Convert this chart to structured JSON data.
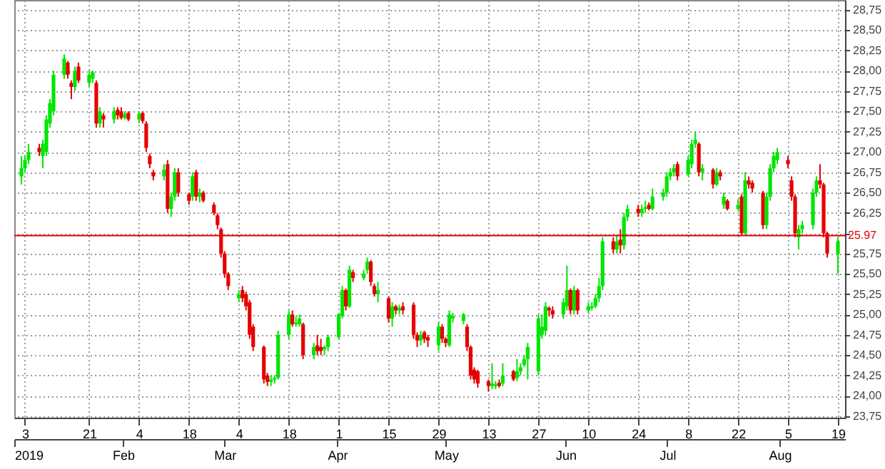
{
  "chart_data": {
    "type": "candlestick",
    "x": [
      "2019-01-02",
      "2019-01-03",
      "2019-01-04",
      "2019-01-07",
      "2019-01-08",
      "2019-01-09",
      "2019-01-10",
      "2019-01-11",
      "2019-01-14",
      "2019-01-15",
      "2019-01-16",
      "2019-01-17",
      "2019-01-18",
      "2019-01-21",
      "2019-01-22",
      "2019-01-23",
      "2019-01-24",
      "2019-01-25",
      "2019-01-28",
      "2019-01-29",
      "2019-01-30",
      "2019-01-31",
      "2019-02-01",
      "2019-02-04",
      "2019-02-05",
      "2019-02-06",
      "2019-02-07",
      "2019-02-08",
      "2019-02-11",
      "2019-02-12",
      "2019-02-13",
      "2019-02-14",
      "2019-02-15",
      "2019-02-18",
      "2019-02-19",
      "2019-02-20",
      "2019-02-21",
      "2019-02-22",
      "2019-02-25",
      "2019-02-26",
      "2019-02-27",
      "2019-02-28",
      "2019-03-01",
      "2019-03-04",
      "2019-03-05",
      "2019-03-06",
      "2019-03-07",
      "2019-03-08",
      "2019-03-11",
      "2019-03-12",
      "2019-03-13",
      "2019-03-14",
      "2019-03-15",
      "2019-03-18",
      "2019-03-19",
      "2019-03-20",
      "2019-03-21",
      "2019-03-22",
      "2019-03-25",
      "2019-03-26",
      "2019-03-27",
      "2019-03-28",
      "2019-03-29",
      "2019-04-01",
      "2019-04-02",
      "2019-04-03",
      "2019-04-04",
      "2019-04-05",
      "2019-04-08",
      "2019-04-09",
      "2019-04-10",
      "2019-04-11",
      "2019-04-12",
      "2019-04-15",
      "2019-04-16",
      "2019-04-17",
      "2019-04-18",
      "2019-04-19",
      "2019-04-22",
      "2019-04-23",
      "2019-04-24",
      "2019-04-25",
      "2019-04-26",
      "2019-04-29",
      "2019-04-30",
      "2019-05-01",
      "2019-05-02",
      "2019-05-03",
      "2019-05-06",
      "2019-05-07",
      "2019-05-08",
      "2019-05-09",
      "2019-05-10",
      "2019-05-13",
      "2019-05-14",
      "2019-05-15",
      "2019-05-16",
      "2019-05-17",
      "2019-05-20",
      "2019-05-21",
      "2019-05-22",
      "2019-05-23",
      "2019-05-24",
      "2019-05-27",
      "2019-05-28",
      "2019-05-29",
      "2019-05-30",
      "2019-05-31",
      "2019-06-03",
      "2019-06-04",
      "2019-06-05",
      "2019-06-06",
      "2019-06-07",
      "2019-06-10",
      "2019-06-11",
      "2019-06-12",
      "2019-06-13",
      "2019-06-14",
      "2019-06-17",
      "2019-06-18",
      "2019-06-19",
      "2019-06-20",
      "2019-06-21",
      "2019-06-24",
      "2019-06-25",
      "2019-06-26",
      "2019-06-27",
      "2019-06-28",
      "2019-07-01",
      "2019-07-02",
      "2019-07-03",
      "2019-07-04",
      "2019-07-05",
      "2019-07-08",
      "2019-07-09",
      "2019-07-10",
      "2019-07-11",
      "2019-07-12",
      "2019-07-15",
      "2019-07-16",
      "2019-07-17",
      "2019-07-18",
      "2019-07-19",
      "2019-07-22",
      "2019-07-23",
      "2019-07-24",
      "2019-07-25",
      "2019-07-26",
      "2019-07-29",
      "2019-07-30",
      "2019-07-31",
      "2019-08-01",
      "2019-08-02",
      "2019-08-05",
      "2019-08-06",
      "2019-08-07",
      "2019-08-08",
      "2019-08-09",
      "2019-08-12",
      "2019-08-13",
      "2019-08-14",
      "2019-08-15",
      "2019-08-16",
      "2019-08-19"
    ],
    "ohlc": [
      [
        26.7,
        26.95,
        26.6,
        26.8
      ],
      [
        26.8,
        26.95,
        26.75,
        26.9
      ],
      [
        26.9,
        27.1,
        26.85,
        27.0
      ],
      [
        27.05,
        27.1,
        26.95,
        27.0
      ],
      [
        26.95,
        27.15,
        26.8,
        27.1
      ],
      [
        27.0,
        27.45,
        26.95,
        27.4
      ],
      [
        27.35,
        27.65,
        27.3,
        27.6
      ],
      [
        27.5,
        28.0,
        27.45,
        27.95
      ],
      [
        27.95,
        28.2,
        27.9,
        28.15
      ],
      [
        28.1,
        28.12,
        27.9,
        27.95
      ],
      [
        27.85,
        27.88,
        27.65,
        27.8
      ],
      [
        27.8,
        28.05,
        27.75,
        28.0
      ],
      [
        28.05,
        28.1,
        27.85,
        27.88
      ],
      [
        27.85,
        28.0,
        27.8,
        27.95
      ],
      [
        27.9,
        28.0,
        27.85,
        27.98
      ],
      [
        27.85,
        27.88,
        27.3,
        27.35
      ],
      [
        27.35,
        27.55,
        27.3,
        27.5
      ],
      [
        27.45,
        27.48,
        27.3,
        27.4
      ],
      [
        27.4,
        27.55,
        27.35,
        27.5
      ],
      [
        27.52,
        27.55,
        27.4,
        27.45
      ],
      [
        27.5,
        27.55,
        27.4,
        27.42
      ],
      [
        27.42,
        27.5,
        27.4,
        27.47
      ],
      [
        27.48,
        27.5,
        27.38,
        27.4
      ],
      [
        27.4,
        27.5,
        27.35,
        27.47
      ],
      [
        27.48,
        27.5,
        27.35,
        27.38
      ],
      [
        27.35,
        27.38,
        27.0,
        27.05
      ],
      [
        26.95,
        26.98,
        26.8,
        26.85
      ],
      [
        26.75,
        26.78,
        26.65,
        26.7
      ],
      [
        26.7,
        26.85,
        26.65,
        26.78
      ],
      [
        26.85,
        26.9,
        26.25,
        26.3
      ],
      [
        26.3,
        26.5,
        26.2,
        26.45
      ],
      [
        26.45,
        26.8,
        26.4,
        26.75
      ],
      [
        26.75,
        26.8,
        26.45,
        26.5
      ],
      [
        26.48,
        26.5,
        26.35,
        26.4
      ],
      [
        26.45,
        26.75,
        26.4,
        26.7
      ],
      [
        26.75,
        26.78,
        26.4,
        26.45
      ],
      [
        26.45,
        26.55,
        26.38,
        26.5
      ],
      [
        26.5,
        26.52,
        26.38,
        26.4
      ],
      [
        26.35,
        26.38,
        26.22,
        26.25
      ],
      [
        26.22,
        26.25,
        26.05,
        26.1
      ],
      [
        26.05,
        26.07,
        25.7,
        25.75
      ],
      [
        25.75,
        25.78,
        25.45,
        25.5
      ],
      [
        25.5,
        25.52,
        25.3,
        25.35
      ],
      [
        25.2,
        25.3,
        25.15,
        25.25
      ],
      [
        25.3,
        25.35,
        25.15,
        25.2
      ],
      [
        25.25,
        25.28,
        25.05,
        25.1
      ],
      [
        25.15,
        25.18,
        24.7,
        24.75
      ],
      [
        24.85,
        24.88,
        24.55,
        24.6
      ],
      [
        24.6,
        24.62,
        24.15,
        24.2
      ],
      [
        24.25,
        24.28,
        24.12,
        24.17
      ],
      [
        24.17,
        24.25,
        24.12,
        24.2
      ],
      [
        24.2,
        24.25,
        24.15,
        24.22
      ],
      [
        24.22,
        24.8,
        24.2,
        24.75
      ],
      [
        24.75,
        25.05,
        24.7,
        25.0
      ],
      [
        25.0,
        25.05,
        24.85,
        24.88
      ],
      [
        24.88,
        24.98,
        24.85,
        24.9
      ],
      [
        24.88,
        25.0,
        24.85,
        24.95
      ],
      [
        24.88,
        24.9,
        24.45,
        24.5
      ],
      [
        24.5,
        24.65,
        24.45,
        24.6
      ],
      [
        24.62,
        24.75,
        24.5,
        24.55
      ],
      [
        24.6,
        24.7,
        24.5,
        24.55
      ],
      [
        24.57,
        24.62,
        24.5,
        24.6
      ],
      [
        24.6,
        24.75,
        24.55,
        24.72
      ],
      [
        24.72,
        25.02,
        24.7,
        25.0
      ],
      [
        24.98,
        25.35,
        24.95,
        25.3
      ],
      [
        25.3,
        25.32,
        25.05,
        25.1
      ],
      [
        25.1,
        25.6,
        25.08,
        25.55
      ],
      [
        25.52,
        25.55,
        25.4,
        25.45
      ],
      [
        25.45,
        25.55,
        25.42,
        25.5
      ],
      [
        25.55,
        25.7,
        25.5,
        25.65
      ],
      [
        25.65,
        25.67,
        25.35,
        25.4
      ],
      [
        25.35,
        25.38,
        25.22,
        25.25
      ],
      [
        25.25,
        25.4,
        25.15,
        25.3
      ],
      [
        25.2,
        25.22,
        24.9,
        24.95
      ],
      [
        24.95,
        25.15,
        24.85,
        25.1
      ],
      [
        25.1,
        25.12,
        25.0,
        25.05
      ],
      [
        25.05,
        25.12,
        25.0,
        25.08
      ],
      [
        25.1,
        25.15,
        25.0,
        25.05
      ],
      [
        25.12,
        25.15,
        24.7,
        24.75
      ],
      [
        24.75,
        24.78,
        24.6,
        24.68
      ],
      [
        24.68,
        24.8,
        24.62,
        24.75
      ],
      [
        24.78,
        24.8,
        24.65,
        24.7
      ],
      [
        24.72,
        24.75,
        24.6,
        24.68
      ],
      [
        24.62,
        24.9,
        24.55,
        24.85
      ],
      [
        24.85,
        24.88,
        24.65,
        24.7
      ],
      [
        24.7,
        24.72,
        24.6,
        24.65
      ],
      [
        24.62,
        25.05,
        24.6,
        25.0
      ],
      [
        24.95,
        25.02,
        24.9,
        24.98
      ],
      [
        24.92,
        25.02,
        24.88,
        25.0
      ],
      [
        24.85,
        24.88,
        24.55,
        24.6
      ],
      [
        24.6,
        24.62,
        24.2,
        24.25
      ],
      [
        24.32,
        24.35,
        24.15,
        24.2
      ],
      [
        24.3,
        24.32,
        24.1,
        24.15
      ],
      [
        24.18,
        24.2,
        24.05,
        24.12
      ],
      [
        24.12,
        24.4,
        24.08,
        24.15
      ],
      [
        24.12,
        24.18,
        24.08,
        24.14
      ],
      [
        24.16,
        24.2,
        24.1,
        24.12
      ],
      [
        24.15,
        24.4,
        24.12,
        24.25
      ],
      [
        24.3,
        24.32,
        24.18,
        24.2
      ],
      [
        24.22,
        24.45,
        24.18,
        24.3
      ],
      [
        24.3,
        24.4,
        24.25,
        24.35
      ],
      [
        24.38,
        24.5,
        24.35,
        24.45
      ],
      [
        24.45,
        24.65,
        24.2,
        24.6
      ],
      [
        24.3,
        25.0,
        24.25,
        24.95
      ],
      [
        24.75,
        25.0,
        24.7,
        24.85
      ],
      [
        24.8,
        25.15,
        24.75,
        25.1
      ],
      [
        25.08,
        25.1,
        24.98,
        25.05
      ],
      [
        25.05,
        25.1,
        24.95,
        25.0
      ],
      [
        25.0,
        25.2,
        24.95,
        25.15
      ],
      [
        25.1,
        25.6,
        25.05,
        25.3
      ],
      [
        25.3,
        25.32,
        25.0,
        25.05
      ],
      [
        25.05,
        25.35,
        25.0,
        25.3
      ],
      [
        25.3,
        25.32,
        25.0,
        25.05
      ],
      [
        25.05,
        25.15,
        25.02,
        25.1
      ],
      [
        25.08,
        25.15,
        25.05,
        25.1
      ],
      [
        25.1,
        25.25,
        25.08,
        25.2
      ],
      [
        25.2,
        25.45,
        25.15,
        25.35
      ],
      [
        25.35,
        25.95,
        25.3,
        25.9
      ],
      [
        25.9,
        25.95,
        25.75,
        25.8
      ],
      [
        25.8,
        25.98,
        25.75,
        25.9
      ],
      [
        25.92,
        26.05,
        25.75,
        25.85
      ],
      [
        25.85,
        26.25,
        25.8,
        26.2
      ],
      [
        26.2,
        26.35,
        26.15,
        26.3
      ],
      [
        26.3,
        26.35,
        26.2,
        26.25
      ],
      [
        26.25,
        26.35,
        26.2,
        26.3
      ],
      [
        26.3,
        26.4,
        26.25,
        26.32
      ],
      [
        26.35,
        26.38,
        26.28,
        26.3
      ],
      [
        26.3,
        26.55,
        26.28,
        26.45
      ],
      [
        26.45,
        26.55,
        26.4,
        26.5
      ],
      [
        26.5,
        26.75,
        26.45,
        26.7
      ],
      [
        26.7,
        26.8,
        26.65,
        26.75
      ],
      [
        26.75,
        26.85,
        26.7,
        26.8
      ],
      [
        26.85,
        26.88,
        26.65,
        26.7
      ],
      [
        26.72,
        26.95,
        26.7,
        26.9
      ],
      [
        26.85,
        27.15,
        26.8,
        27.1
      ],
      [
        27.1,
        27.25,
        27.05,
        27.15
      ],
      [
        27.1,
        27.12,
        26.7,
        26.75
      ],
      [
        26.75,
        26.85,
        26.65,
        26.8
      ],
      [
        26.78,
        26.8,
        26.55,
        26.6
      ],
      [
        26.6,
        26.8,
        26.58,
        26.75
      ],
      [
        26.75,
        26.78,
        26.65,
        26.7
      ],
      [
        26.35,
        26.5,
        26.3,
        26.45
      ],
      [
        26.4,
        26.42,
        26.28,
        26.3
      ],
      [
        26.3,
        26.42,
        26.28,
        26.35
      ],
      [
        26.45,
        26.48,
        25.98,
        26.0
      ],
      [
        26.0,
        26.75,
        25.98,
        26.65
      ],
      [
        26.65,
        26.7,
        26.55,
        26.6
      ],
      [
        26.62,
        26.65,
        26.5,
        26.55
      ],
      [
        26.5,
        26.52,
        26.05,
        26.1
      ],
      [
        26.1,
        26.5,
        26.05,
        26.45
      ],
      [
        26.45,
        26.85,
        26.4,
        26.8
      ],
      [
        26.8,
        27.0,
        26.75,
        26.95
      ],
      [
        26.9,
        27.05,
        26.85,
        27.0
      ],
      [
        26.9,
        26.95,
        26.8,
        26.85
      ],
      [
        26.65,
        26.7,
        26.4,
        26.45
      ],
      [
        26.45,
        26.48,
        25.95,
        26.0
      ],
      [
        25.95,
        26.1,
        25.8,
        26.05
      ],
      [
        26.05,
        26.15,
        26.0,
        26.1
      ],
      [
        26.1,
        26.55,
        26.05,
        26.5
      ],
      [
        26.5,
        26.7,
        26.45,
        26.65
      ],
      [
        26.65,
        26.85,
        26.55,
        26.6
      ],
      [
        26.6,
        26.62,
        25.95,
        26.0
      ],
      [
        26.0,
        26.02,
        25.7,
        25.75
      ],
      [
        25.75,
        25.95,
        25.5,
        25.9
      ]
    ],
    "colors": [
      "#00e600",
      "#00e600",
      "#00e600",
      "#e60000",
      "#00e600",
      "#00e600",
      "#00e600",
      "#00e600",
      "#00e600",
      "#e60000",
      "#e60000",
      "#00e600",
      "#e60000",
      "#00e600",
      "#00e600",
      "#e60000",
      "#00e600",
      "#e60000",
      "#00e600",
      "#e60000",
      "#e60000",
      "#00e600",
      "#e60000",
      "#00e600",
      "#e60000",
      "#e60000",
      "#e60000",
      "#e60000",
      "#00e600",
      "#e60000",
      "#00e600",
      "#00e600",
      "#e60000",
      "#e60000",
      "#00e600",
      "#e60000",
      "#00e600",
      "#e60000",
      "#e60000",
      "#e60000",
      "#e60000",
      "#e60000",
      "#e60000",
      "#00e600",
      "#e60000",
      "#e60000",
      "#e60000",
      "#e60000",
      "#e60000",
      "#e60000",
      "#00e600",
      "#00e600",
      "#00e600",
      "#00e600",
      "#e60000",
      "#00e600",
      "#00e600",
      "#e60000",
      "#00e600",
      "#e60000",
      "#e60000",
      "#00e600",
      "#00e600",
      "#00e600",
      "#00e600",
      "#e60000",
      "#00e600",
      "#e60000",
      "#00e600",
      "#00e600",
      "#e60000",
      "#e60000",
      "#00e600",
      "#e60000",
      "#00e600",
      "#e60000",
      "#00e600",
      "#e60000",
      "#e60000",
      "#e60000",
      "#00e600",
      "#e60000",
      "#e60000",
      "#00e600",
      "#e60000",
      "#e60000",
      "#00e600",
      "#00e600",
      "#00e600",
      "#e60000",
      "#e60000",
      "#e60000",
      "#e60000",
      "#e60000",
      "#00e600",
      "#00e600",
      "#e60000",
      "#00e600",
      "#e60000",
      "#00e600",
      "#00e600",
      "#00e600",
      "#00e600",
      "#00e600",
      "#00e600",
      "#00e600",
      "#e60000",
      "#e60000",
      "#00e600",
      "#00e600",
      "#e60000",
      "#00e600",
      "#e60000",
      "#00e600",
      "#00e600",
      "#00e600",
      "#00e600",
      "#00e600",
      "#e60000",
      "#00e600",
      "#e60000",
      "#00e600",
      "#00e600",
      "#e60000",
      "#00e600",
      "#00e600",
      "#e60000",
      "#00e600",
      "#00e600",
      "#00e600",
      "#00e600",
      "#00e600",
      "#e60000",
      "#00e600",
      "#00e600",
      "#00e600",
      "#e60000",
      "#00e600",
      "#e60000",
      "#00e600",
      "#e60000",
      "#00e600",
      "#e60000",
      "#00e600",
      "#e60000",
      "#00e600",
      "#e60000",
      "#e60000",
      "#e60000",
      "#00e600",
      "#00e600",
      "#00e600",
      "#00e600",
      "#e60000",
      "#e60000",
      "#e60000",
      "#00e600",
      "#00e600",
      "#00e600",
      "#00e600",
      "#e60000",
      "#e60000",
      "#e60000",
      "#00e600"
    ],
    "xlim": [
      "2019-01-02",
      "2019-08-19"
    ],
    "xticks": [
      {
        "value": "2019-01-03",
        "label": "3"
      },
      {
        "value": "2019-01-21",
        "label": "21"
      },
      {
        "value": "2019-02-04",
        "label": "4"
      },
      {
        "value": "2019-02-18",
        "label": "18"
      },
      {
        "value": "2019-03-04",
        "label": "4"
      },
      {
        "value": "2019-03-18",
        "label": "18"
      },
      {
        "value": "2019-04-01",
        "label": "1"
      },
      {
        "value": "2019-04-15",
        "label": "15"
      },
      {
        "value": "2019-04-29",
        "label": "29"
      },
      {
        "value": "2019-05-13",
        "label": "13"
      },
      {
        "value": "2019-05-27",
        "label": "27"
      },
      {
        "value": "2019-06-10",
        "label": "10"
      },
      {
        "value": "2019-06-24",
        "label": "24"
      },
      {
        "value": "2019-07-08",
        "label": "8"
      },
      {
        "value": "2019-07-22",
        "label": "22"
      },
      {
        "value": "2019-08-05",
        "label": "5"
      },
      {
        "value": "2019-08-19",
        "label": "19"
      }
    ],
    "x2lim": [
      "2019-01-02",
      "2019-08-19"
    ],
    "x2ticks": [
      {
        "value": "2019-01-02",
        "label": "2019"
      },
      {
        "value": "2019-02-01",
        "label": "Feb"
      },
      {
        "value": "2019-03-01",
        "label": "Mar"
      },
      {
        "value": "2019-04-01",
        "label": "Apr"
      },
      {
        "value": "2019-05-01",
        "label": "May"
      },
      {
        "value": "2019-06-03",
        "label": "Jun"
      },
      {
        "value": "2019-07-01",
        "label": "Jul"
      },
      {
        "value": "2019-08-01",
        "label": "Aug"
      }
    ],
    "ylim": [
      23.73,
      28.87
    ],
    "yticks": [
      {
        "value": 23.75,
        "label": "23,75"
      },
      {
        "value": 24,
        "label": "24,00"
      },
      {
        "value": 24.25,
        "label": "24,25"
      },
      {
        "value": 24.5,
        "label": "24,50"
      },
      {
        "value": 24.75,
        "label": "24,75"
      },
      {
        "value": 25,
        "label": "25,00"
      },
      {
        "value": 25.25,
        "label": "25,25"
      },
      {
        "value": 25.5,
        "label": "25,50"
      },
      {
        "value": 25.75,
        "label": "25,75"
      },
      {
        "value": 26,
        "label": null
      },
      {
        "value": 26.25,
        "label": "26,25"
      },
      {
        "value": 26.5,
        "label": "26,50"
      },
      {
        "value": 26.75,
        "label": "26,75"
      },
      {
        "value": 27,
        "label": "27,00"
      },
      {
        "value": 27.25,
        "label": "27,25"
      },
      {
        "value": 27.5,
        "label": "27,50"
      },
      {
        "value": 27.75,
        "label": "27,75"
      },
      {
        "value": 28,
        "label": "28,00"
      },
      {
        "value": 28.25,
        "label": "28,25"
      },
      {
        "value": 28.5,
        "label": "28,50"
      },
      {
        "value": 28.75,
        "label": "28,75"
      }
    ],
    "ref_lines": [
      {
        "axis": "y",
        "value": 25.97,
        "label": "25.97",
        "color": "#e60000"
      }
    ],
    "grid": true
  }
}
